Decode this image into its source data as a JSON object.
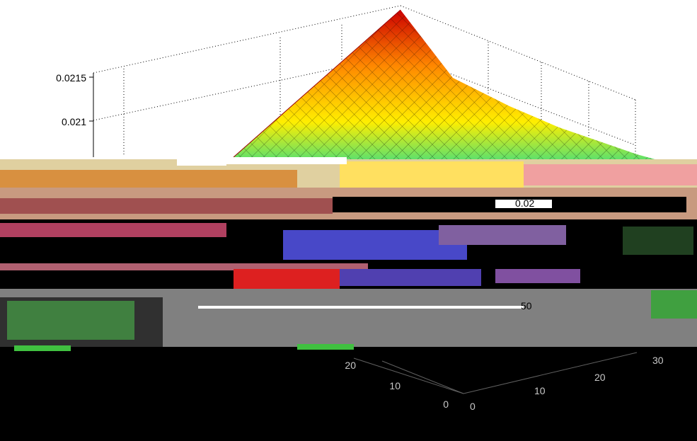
{
  "chart_data": {
    "type": "surface",
    "title": "",
    "xlabel": "",
    "ylabel": "",
    "zlabel": "",
    "x_ticks": [
      "0",
      "10",
      "20",
      "30"
    ],
    "y_ticks": [
      "0",
      "10",
      "20",
      "30"
    ],
    "z_ticks": [
      "0.021",
      "0.0215"
    ],
    "stray_labels": [
      "0.02",
      "50"
    ],
    "xlim": [
      0,
      30
    ],
    "ylim": [
      0,
      30
    ],
    "zlim_visible": [
      0.0205,
      0.0218
    ],
    "peak": {
      "x": 30,
      "y": 30,
      "z": 0.0218
    },
    "grid": true,
    "colormap": "jet",
    "colors": {
      "peak": "#cc0000",
      "high": "#ff8800",
      "mid": "#ffee00",
      "low": "#33dd88",
      "lowest": "#3344dd",
      "floor": "#000000",
      "mid_band": "#888888"
    }
  }
}
